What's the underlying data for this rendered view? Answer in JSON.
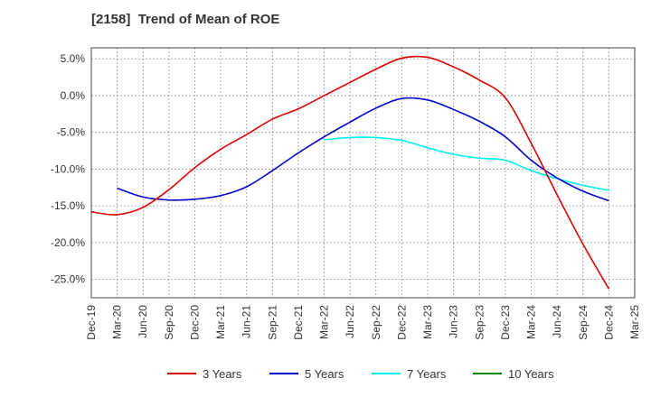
{
  "chart_data": {
    "type": "line",
    "title": "[2158]  Trend of Mean of ROE",
    "xlabel": "",
    "ylabel": "",
    "ylim": [
      -27.5,
      6.5
    ],
    "yticks": [
      5.0,
      0.0,
      -5.0,
      -10.0,
      -15.0,
      -20.0,
      -25.0
    ],
    "ytick_labels": [
      "5.0%",
      "0.0%",
      "-5.0%",
      "-10.0%",
      "-15.0%",
      "-20.0%",
      "-25.0%"
    ],
    "categories": [
      "Dec-19",
      "Mar-20",
      "Jun-20",
      "Sep-20",
      "Dec-20",
      "Mar-21",
      "Jun-21",
      "Sep-21",
      "Dec-21",
      "Mar-22",
      "Jun-22",
      "Sep-22",
      "Dec-22",
      "Mar-23",
      "Jun-23",
      "Sep-23",
      "Dec-23",
      "Mar-24",
      "Jun-24",
      "Sep-24",
      "Dec-24",
      "Mar-25"
    ],
    "grid": true,
    "legend_position": "bottom",
    "series": [
      {
        "name": "3 Years",
        "color": "#dd0000",
        "values": [
          -15.8,
          -16.2,
          -15.2,
          -12.8,
          -9.8,
          -7.3,
          -5.3,
          -3.2,
          -1.8,
          0.0,
          1.8,
          3.6,
          5.1,
          5.2,
          3.9,
          2.1,
          -0.3,
          -6.5,
          -13.5,
          -20.2,
          -26.3,
          null
        ]
      },
      {
        "name": "5 Years",
        "color": "#0000cc",
        "values": [
          null,
          -12.6,
          -13.8,
          -14.2,
          -14.1,
          -13.6,
          -12.4,
          -10.2,
          -7.8,
          -5.6,
          -3.6,
          -1.7,
          -0.4,
          -0.6,
          -1.9,
          -3.5,
          -5.6,
          -8.8,
          -11.2,
          -13.0,
          -14.3,
          null
        ]
      },
      {
        "name": "7 Years",
        "color": "#00eeee",
        "values": [
          null,
          null,
          null,
          null,
          null,
          null,
          null,
          null,
          null,
          -6.0,
          -5.7,
          -5.7,
          -6.1,
          -7.1,
          -8.0,
          -8.5,
          -8.8,
          -10.2,
          -11.3,
          -12.2,
          -12.9,
          null
        ]
      },
      {
        "name": "10 Years",
        "color": "#008000",
        "values": [
          null,
          null,
          null,
          null,
          null,
          null,
          null,
          null,
          null,
          null,
          null,
          null,
          null,
          null,
          null,
          null,
          null,
          null,
          null,
          null,
          null,
          null
        ]
      }
    ]
  }
}
